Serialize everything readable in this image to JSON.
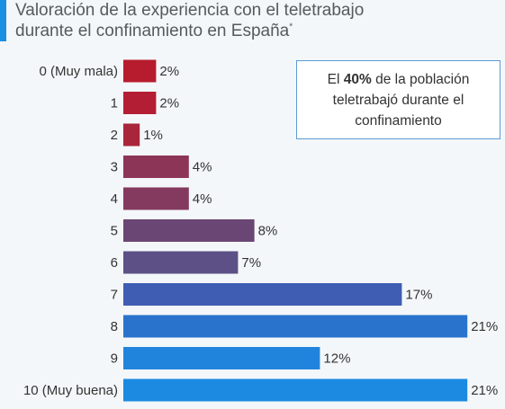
{
  "header": {
    "title_line1": "Valoración de la experiencia con el teletrabajo",
    "title_line2": "durante el confinamiento en España",
    "title_mark": "*"
  },
  "callout": {
    "prefix": "El",
    "highlight": "40%",
    "suffix": "de la población teletrabajó durante el confinamiento"
  },
  "chart_data": {
    "type": "bar",
    "orientation": "horizontal",
    "categories": [
      "0 (Muy mala)",
      "1",
      "2",
      "3",
      "4",
      "5",
      "6",
      "7",
      "8",
      "9",
      "10 (Muy buena)"
    ],
    "values": [
      2,
      2,
      1,
      4,
      4,
      8,
      7,
      17,
      21,
      12,
      21
    ],
    "value_labels": [
      "2%",
      "2%",
      "1%",
      "4%",
      "4%",
      "8%",
      "7%",
      "17%",
      "21%",
      "12%",
      "21%"
    ],
    "unit": "%",
    "colors": [
      "#b71c2e",
      "#b41e34",
      "#a9253c",
      "#8c3557",
      "#843a5e",
      "#6a4675",
      "#5d5086",
      "#3e5db3",
      "#2973cd",
      "#2084dc",
      "#1d8ae1"
    ],
    "xlim": [
      0,
      21
    ],
    "grid": false,
    "legend": "none"
  }
}
